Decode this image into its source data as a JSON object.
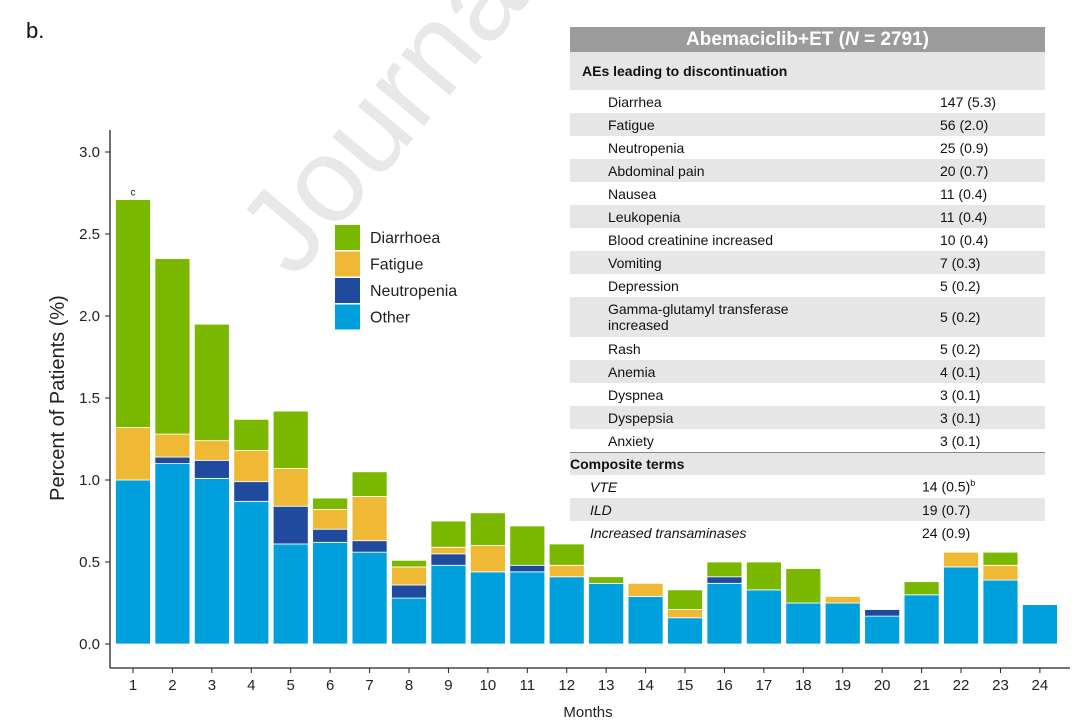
{
  "panel_label": "b.",
  "watermark": "Journal Pre-P",
  "chart_data": {
    "type": "bar",
    "stacked": true,
    "xlabel": "Months",
    "ylabel": "Percent of Patients (%)",
    "ylim": [
      0,
      3.0
    ],
    "yticks": [
      "0.0",
      "0.5",
      "1.0",
      "1.5",
      "2.0",
      "2.5",
      "3.0"
    ],
    "categories": [
      "1",
      "2",
      "3",
      "4",
      "5",
      "6",
      "7",
      "8",
      "9",
      "10",
      "11",
      "12",
      "13",
      "14",
      "15",
      "16",
      "17",
      "18",
      "19",
      "20",
      "21",
      "22",
      "23",
      "24"
    ],
    "legend_position": "top-center",
    "grid": false,
    "annotations": [
      {
        "category": "1",
        "text": "c"
      }
    ],
    "series": [
      {
        "name": "Other",
        "color": "#00a0dc",
        "values": [
          1.0,
          1.1,
          1.01,
          0.87,
          0.61,
          0.62,
          0.56,
          0.28,
          0.48,
          0.44,
          0.44,
          0.41,
          0.37,
          0.29,
          0.16,
          0.37,
          0.33,
          0.25,
          0.25,
          0.17,
          0.3,
          0.47,
          0.39,
          0.24
        ]
      },
      {
        "name": "Neutropenia",
        "color": "#1f4a9e",
        "values": [
          0,
          0.04,
          0.11,
          0.12,
          0.23,
          0.08,
          0.07,
          0.08,
          0.07,
          0,
          0.04,
          0,
          0,
          0,
          0,
          0.04,
          0,
          0,
          0,
          0.04,
          0,
          0,
          0,
          0
        ]
      },
      {
        "name": "Fatigue",
        "color": "#efb935",
        "values": [
          0.32,
          0.14,
          0.12,
          0.19,
          0.23,
          0.12,
          0.27,
          0.11,
          0.04,
          0.16,
          0,
          0.07,
          0,
          0.08,
          0.05,
          0,
          0,
          0,
          0.04,
          0,
          0,
          0.09,
          0.09,
          0
        ]
      },
      {
        "name": "Diarrhoea",
        "color": "#7ab800",
        "values": [
          1.39,
          1.07,
          0.71,
          0.19,
          0.35,
          0.07,
          0.15,
          0.04,
          0.16,
          0.2,
          0.24,
          0.13,
          0.04,
          0,
          0.12,
          0.09,
          0.17,
          0.21,
          0,
          0,
          0.08,
          0,
          0.08,
          0
        ]
      }
    ],
    "legend_order": [
      "Diarrhoea",
      "Fatigue",
      "Neutropenia",
      "Other"
    ]
  },
  "table": {
    "title": "Abemaciclib+ET (",
    "title_n": "N",
    "title_rest": " = 2791)",
    "section1": "AEs leading to discontinuation",
    "rows": [
      {
        "name": "Diarrhea",
        "value": "147 (5.3)"
      },
      {
        "name": "Fatigue",
        "value": "56 (2.0)"
      },
      {
        "name": "Neutropenia",
        "value": "25 (0.9)"
      },
      {
        "name": "Abdominal pain",
        "value": "20 (0.7)"
      },
      {
        "name": "Nausea",
        "value": "11 (0.4)"
      },
      {
        "name": "Leukopenia",
        "value": "11 (0.4)"
      },
      {
        "name": "Blood creatinine increased",
        "value": "10 (0.4)"
      },
      {
        "name": "Vomiting",
        "value": "7 (0.3)"
      },
      {
        "name": "Depression",
        "value": "5 (0.2)"
      },
      {
        "name": "Gamma-glutamyl transferase\n increased",
        "value": "5 (0.2)"
      },
      {
        "name": "Rash",
        "value": "5 (0.2)"
      },
      {
        "name": "Anemia",
        "value": "4 (0.1)"
      },
      {
        "name": "Dyspnea",
        "value": "3 (0.1)"
      },
      {
        "name": "Dyspepsia",
        "value": "3 (0.1)"
      },
      {
        "name": "Anxiety",
        "value": "3 (0.1)"
      }
    ],
    "section2": "Composite terms",
    "composite": [
      {
        "name": "VTE",
        "value": "14 (0.5)",
        "sup": "b"
      },
      {
        "name": "ILD",
        "value": "19 (0.7)"
      },
      {
        "name": "Increased transaminases",
        "value": "24 (0.9)"
      }
    ]
  }
}
